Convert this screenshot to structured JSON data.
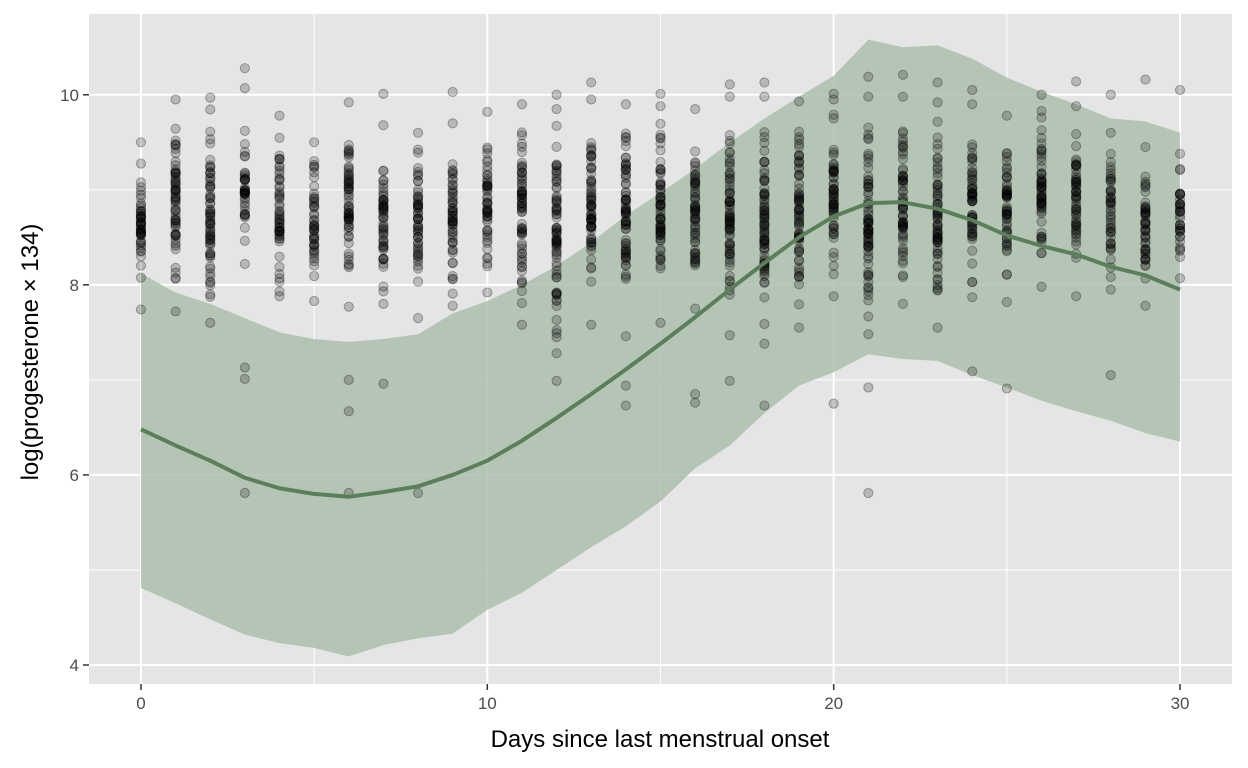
{
  "chart_data": {
    "type": "scatter",
    "xlabel": "Days since last menstrual onset",
    "ylabel": "log(progesterone × 134)",
    "xlim": [
      -1.5,
      31.5
    ],
    "ylim": [
      3.8,
      10.85
    ],
    "x_ticks": [
      0,
      10,
      20,
      30
    ],
    "x_tick_labels": [
      "0",
      "10",
      "20",
      "30"
    ],
    "y_ticks": [
      4,
      6,
      8,
      10
    ],
    "y_tick_labels": [
      "4",
      "6",
      "8",
      "10"
    ],
    "grid": true,
    "colors": {
      "panel_background": "#e5e5e5",
      "grid": "#ffffff",
      "points": "#000000",
      "band": "#adbfad",
      "line": "#5b7f5b"
    },
    "series": [
      {
        "type": "scatter",
        "columns": [
          {
            "x": 0,
            "min": 7.74,
            "max": 9.5,
            "outliers": []
          },
          {
            "x": 1,
            "min": 7.72,
            "max": 9.95,
            "outliers": []
          },
          {
            "x": 2,
            "min": 7.6,
            "max": 9.97,
            "outliers": []
          },
          {
            "x": 3,
            "min": 8.22,
            "max": 9.62,
            "outliers": [
              5.81,
              7.01,
              7.13,
              10.07,
              10.28
            ]
          },
          {
            "x": 4,
            "min": 7.88,
            "max": 9.78,
            "outliers": []
          },
          {
            "x": 5,
            "min": 7.83,
            "max": 9.5,
            "outliers": []
          },
          {
            "x": 6,
            "min": 7.77,
            "max": 9.92,
            "outliers": [
              5.81,
              6.67,
              7.0
            ]
          },
          {
            "x": 7,
            "min": 7.8,
            "max": 9.68,
            "outliers": [
              6.96,
              10.01
            ]
          },
          {
            "x": 8,
            "min": 7.65,
            "max": 9.6,
            "outliers": [
              5.81
            ]
          },
          {
            "x": 9,
            "min": 7.78,
            "max": 9.7,
            "outliers": [
              10.03
            ]
          },
          {
            "x": 10,
            "min": 7.92,
            "max": 9.82,
            "outliers": []
          },
          {
            "x": 11,
            "min": 7.58,
            "max": 9.9,
            "outliers": []
          },
          {
            "x": 12,
            "min": 7.28,
            "max": 9.85,
            "outliers": [
              6.99,
              7.45,
              10.0
            ]
          },
          {
            "x": 13,
            "min": 7.58,
            "max": 9.95,
            "outliers": [
              10.13
            ]
          },
          {
            "x": 14,
            "min": 7.46,
            "max": 9.9,
            "outliers": [
              6.73,
              6.94
            ]
          },
          {
            "x": 15,
            "min": 7.6,
            "max": 9.88,
            "outliers": [
              10.01
            ]
          },
          {
            "x": 16,
            "min": 7.75,
            "max": 9.85,
            "outliers": [
              6.76,
              6.85
            ]
          },
          {
            "x": 17,
            "min": 7.47,
            "max": 9.98,
            "outliers": [
              6.99,
              10.11
            ]
          },
          {
            "x": 18,
            "min": 7.38,
            "max": 9.98,
            "outliers": [
              6.73,
              10.13
            ]
          },
          {
            "x": 19,
            "min": 7.55,
            "max": 9.93,
            "outliers": []
          },
          {
            "x": 20,
            "min": 7.88,
            "max": 9.95,
            "outliers": [
              6.75,
              10.01
            ]
          },
          {
            "x": 21,
            "min": 7.48,
            "max": 9.98,
            "outliers": [
              5.81,
              6.92,
              10.19
            ]
          },
          {
            "x": 22,
            "min": 7.8,
            "max": 9.98,
            "outliers": [
              10.21
            ]
          },
          {
            "x": 23,
            "min": 7.55,
            "max": 9.92,
            "outliers": [
              10.13
            ]
          },
          {
            "x": 24,
            "min": 7.87,
            "max": 9.9,
            "outliers": [
              7.09,
              10.05
            ]
          },
          {
            "x": 25,
            "min": 7.82,
            "max": 9.78,
            "outliers": [
              6.91
            ]
          },
          {
            "x": 26,
            "min": 7.98,
            "max": 10.0,
            "outliers": []
          },
          {
            "x": 27,
            "min": 7.88,
            "max": 9.88,
            "outliers": [
              10.14
            ]
          },
          {
            "x": 28,
            "min": 7.95,
            "max": 9.6,
            "outliers": [
              7.05,
              10.0
            ]
          },
          {
            "x": 29,
            "min": 7.78,
            "max": 9.45,
            "outliers": [
              10.16
            ]
          },
          {
            "x": 30,
            "min": 8.07,
            "max": 9.38,
            "outliers": [
              10.05
            ]
          }
        ]
      },
      {
        "type": "line",
        "x": [
          0,
          1,
          2,
          3,
          4,
          5,
          6,
          7,
          8,
          9,
          10,
          11,
          12,
          13,
          14,
          15,
          16,
          17,
          18,
          19,
          20,
          21,
          22,
          23,
          24,
          25,
          26,
          27,
          28,
          29,
          30
        ],
        "y": [
          6.48,
          6.31,
          6.15,
          5.97,
          5.86,
          5.8,
          5.77,
          5.82,
          5.88,
          6.0,
          6.15,
          6.36,
          6.6,
          6.85,
          7.11,
          7.38,
          7.66,
          7.95,
          8.23,
          8.5,
          8.72,
          8.86,
          8.87,
          8.8,
          8.68,
          8.52,
          8.41,
          8.32,
          8.19,
          8.1,
          7.95
        ],
        "lower": [
          4.81,
          4.65,
          4.48,
          4.32,
          4.23,
          4.18,
          4.09,
          4.21,
          4.28,
          4.33,
          4.58,
          4.76,
          5.0,
          5.24,
          5.46,
          5.72,
          6.07,
          6.31,
          6.65,
          6.94,
          7.08,
          7.27,
          7.22,
          7.2,
          7.05,
          6.92,
          6.78,
          6.67,
          6.57,
          6.44,
          6.35
        ],
        "upper": [
          8.12,
          7.92,
          7.8,
          7.65,
          7.5,
          7.43,
          7.4,
          7.43,
          7.48,
          7.7,
          7.83,
          8.0,
          8.2,
          8.45,
          8.73,
          8.97,
          9.22,
          9.5,
          9.75,
          9.98,
          10.2,
          10.58,
          10.5,
          10.52,
          10.38,
          10.18,
          10.03,
          9.9,
          9.75,
          9.72,
          9.6
        ]
      }
    ]
  }
}
